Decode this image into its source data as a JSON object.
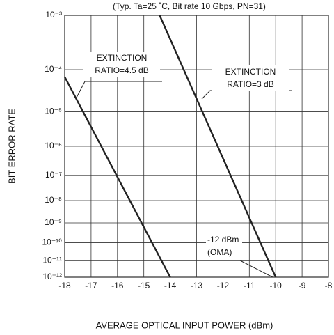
{
  "chart_data": {
    "type": "line",
    "subtitle": "(Typ. Ta=25 ˚C, Bit rate 10 Gbps, PN=31)",
    "x_label": "AVERAGE OPTICAL INPUT POWER (dBm)",
    "y_label": "BIT ERROR RATE",
    "yscale": "log-log",
    "grid": true,
    "xlim": [
      -18,
      -8
    ],
    "xticks": [
      -18,
      -17,
      -16,
      -15,
      -14,
      -13,
      -12,
      -11,
      -10,
      -9,
      -8
    ],
    "ylim": [
      0.001,
      1e-12
    ],
    "yticks": [
      {
        "value": 0.001,
        "label": "10⁻³"
      },
      {
        "value": 0.0001,
        "label": "10⁻⁴"
      },
      {
        "value": 1e-05,
        "label": "10⁻⁵"
      },
      {
        "value": 1e-06,
        "label": "10⁻⁶"
      },
      {
        "value": 1e-07,
        "label": "10⁻⁷"
      },
      {
        "value": 1e-08,
        "label": "10⁻⁸"
      },
      {
        "value": 1e-09,
        "label": "10⁻⁹"
      },
      {
        "value": 1e-10,
        "label": "10⁻¹⁰"
      },
      {
        "value": 1e-11,
        "label": "10⁻¹¹"
      },
      {
        "value": 1e-12,
        "label": "10⁻¹²"
      }
    ],
    "series": [
      {
        "name": "EXTINCTION RATIO=4.5 dB",
        "color": "#222222",
        "x": [
          -18,
          -14
        ],
        "values": [
          7e-05,
          1e-12
        ]
      },
      {
        "name": "EXTINCTION RATIO=3 dB",
        "color": "#222222",
        "x": [
          -14.4,
          -10
        ],
        "values": [
          0.001,
          1e-12
        ]
      }
    ],
    "annotations": [
      {
        "lines": [
          "EXTINCTION",
          "RATIO=4.5 dB"
        ]
      },
      {
        "lines": [
          "EXTINCTION",
          "RATIO=3 dB"
        ]
      },
      {
        "lines": [
          "-12 dBm",
          "(OMA)"
        ]
      }
    ]
  }
}
